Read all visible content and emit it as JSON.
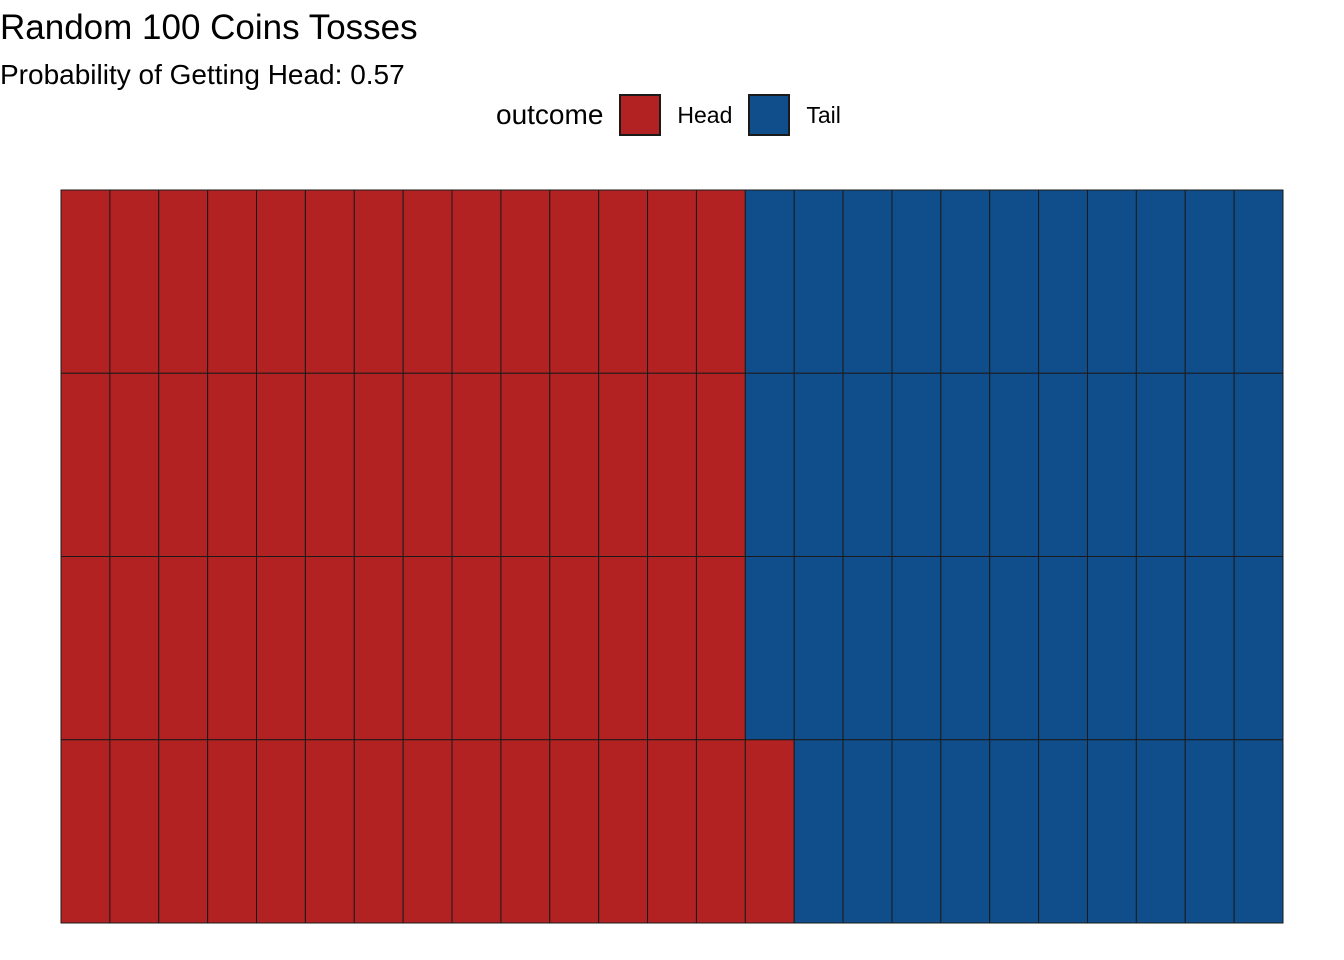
{
  "title": "Random 100 Coins Tosses",
  "subtitle": "Probability of Getting Head: 0.57",
  "colors": {
    "head": "#B22222",
    "tail": "#104E8B",
    "border": "#1a1a1a"
  },
  "legend": {
    "title": "outcome",
    "items": [
      {
        "label": "Head",
        "color": "#B22222"
      },
      {
        "label": "Tail",
        "color": "#104E8B"
      }
    ]
  },
  "chart_data": {
    "type": "heatmap",
    "title": "Random 100 Coins Tosses",
    "subtitle": "Probability of Getting Head: 0.57",
    "legend_title": "outcome",
    "legend_position": "top",
    "categories": [
      "Head",
      "Tail"
    ],
    "values": [
      57,
      43
    ],
    "total": 100,
    "grid_columns": 25,
    "grid_rows": 4,
    "grid": false,
    "fill_order": "column-major, from bottom row upward",
    "rows_top_to_bottom": [
      [
        "Head",
        "Head",
        "Head",
        "Head",
        "Head",
        "Head",
        "Head",
        "Head",
        "Head",
        "Head",
        "Head",
        "Head",
        "Head",
        "Head",
        "Tail",
        "Tail",
        "Tail",
        "Tail",
        "Tail",
        "Tail",
        "Tail",
        "Tail",
        "Tail",
        "Tail",
        "Tail"
      ],
      [
        "Head",
        "Head",
        "Head",
        "Head",
        "Head",
        "Head",
        "Head",
        "Head",
        "Head",
        "Head",
        "Head",
        "Head",
        "Head",
        "Head",
        "Tail",
        "Tail",
        "Tail",
        "Tail",
        "Tail",
        "Tail",
        "Tail",
        "Tail",
        "Tail",
        "Tail",
        "Tail"
      ],
      [
        "Head",
        "Head",
        "Head",
        "Head",
        "Head",
        "Head",
        "Head",
        "Head",
        "Head",
        "Head",
        "Head",
        "Head",
        "Head",
        "Head",
        "Tail",
        "Tail",
        "Tail",
        "Tail",
        "Tail",
        "Tail",
        "Tail",
        "Tail",
        "Tail",
        "Tail",
        "Tail"
      ],
      [
        "Head",
        "Head",
        "Head",
        "Head",
        "Head",
        "Head",
        "Head",
        "Head",
        "Head",
        "Head",
        "Head",
        "Head",
        "Head",
        "Head",
        "Head",
        "Tail",
        "Tail",
        "Tail",
        "Tail",
        "Tail",
        "Tail",
        "Tail",
        "Tail",
        "Tail",
        "Tail"
      ]
    ]
  }
}
